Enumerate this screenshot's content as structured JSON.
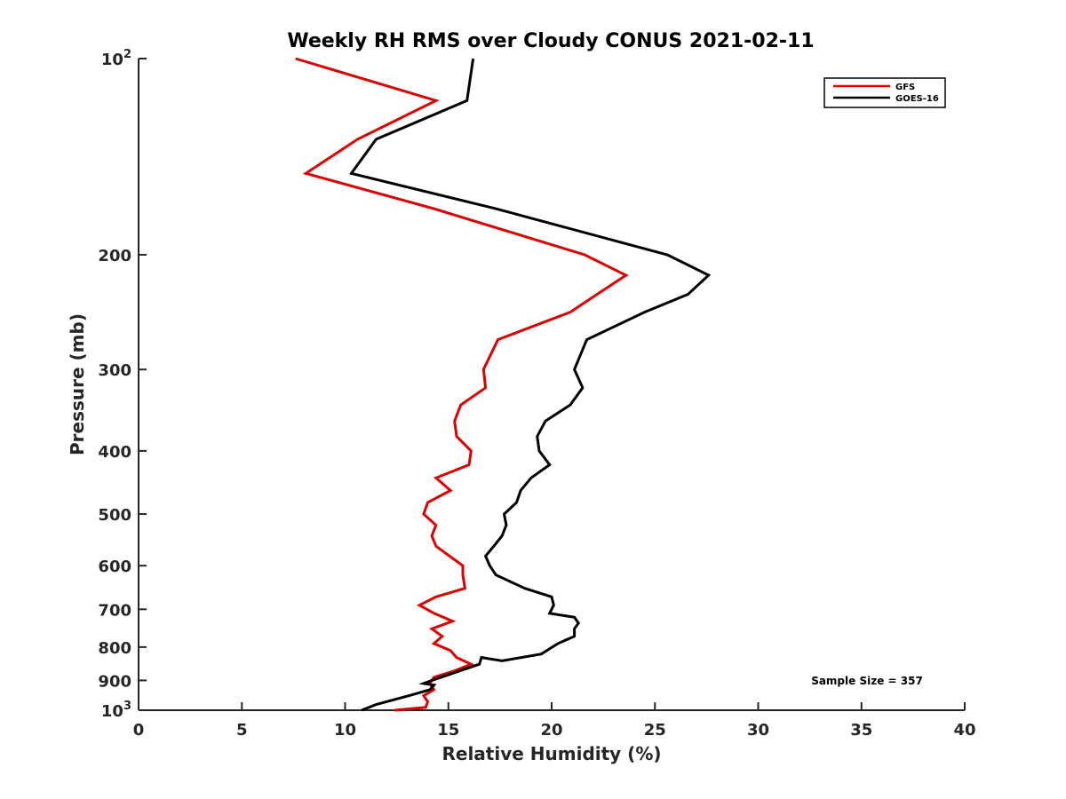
{
  "chart_data": {
    "type": "line",
    "title": "Weekly RH RMS over Cloudy CONUS 2021-02-11",
    "xlabel": "Relative Humidity (%)",
    "ylabel": "Pressure (mb)",
    "xlim": [
      0,
      40
    ],
    "ylim": [
      100,
      1000
    ],
    "yscale": "log",
    "y_reversed": true,
    "grid": false,
    "legend_position": "top-right",
    "x_ticks": [
      "0",
      "5",
      "10",
      "15",
      "20",
      "25",
      "30",
      "35",
      "40"
    ],
    "y_ticks": [
      {
        "value": 100,
        "base": "10",
        "exp": "2"
      },
      {
        "value": 200,
        "label": "200"
      },
      {
        "value": 300,
        "label": "300"
      },
      {
        "value": 400,
        "label": "400"
      },
      {
        "value": 500,
        "label": "500"
      },
      {
        "value": 600,
        "label": "600"
      },
      {
        "value": 700,
        "label": "700"
      },
      {
        "value": 800,
        "label": "800"
      },
      {
        "value": 900,
        "label": "900"
      },
      {
        "value": 1000,
        "base": "10",
        "exp": "3"
      }
    ],
    "series": [
      {
        "name": "GFS",
        "color": "#dd0000",
        "x": [
          7.6,
          14.4,
          10.6,
          8.1,
          14.3,
          21.6,
          23.6,
          22.2,
          20.9,
          17.4,
          16.7,
          16.8,
          15.6,
          15.3,
          15.4,
          16.1,
          16.0,
          14.4,
          15.1,
          14.0,
          13.8,
          14.4,
          14.2,
          14.4,
          15.7,
          15.7,
          15.8,
          14.4,
          13.6,
          14.3,
          15.2,
          14.2,
          14.7,
          14.3,
          15.1,
          15.4,
          16.1,
          15.3,
          14.3,
          14.1,
          14.3,
          13.8,
          14.0,
          13.9,
          12.4
        ],
        "y": [
          100,
          116,
          133,
          150,
          170,
          200,
          215,
          230,
          245,
          270,
          300,
          320,
          340,
          360,
          380,
          400,
          420,
          440,
          460,
          480,
          500,
          520,
          540,
          560,
          600,
          620,
          650,
          670,
          690,
          710,
          730,
          750,
          770,
          790,
          810,
          830,
          850,
          870,
          890,
          910,
          930,
          950,
          970,
          990,
          1000
        ]
      },
      {
        "name": "GOES-16",
        "color": "#000000",
        "x": [
          16.2,
          15.9,
          11.5,
          10.3,
          17.3,
          25.6,
          27.6,
          26.6,
          24.5,
          21.7,
          21.1,
          21.5,
          20.9,
          19.7,
          19.3,
          19.4,
          19.9,
          19.0,
          18.5,
          18.3,
          17.7,
          17.8,
          17.6,
          17.2,
          16.8,
          17.0,
          17.3,
          18.7,
          20.0,
          20.1,
          19.9,
          21.1,
          21.3,
          21.1,
          21.1,
          20.3,
          19.5,
          17.6,
          16.6,
          16.5,
          14.2,
          13.8,
          14.3,
          14.1,
          13.1,
          11.5,
          10.8
        ],
        "y": [
          100,
          116,
          133,
          150,
          170,
          200,
          215,
          230,
          245,
          270,
          300,
          320,
          340,
          360,
          380,
          400,
          420,
          440,
          460,
          480,
          500,
          520,
          540,
          560,
          580,
          600,
          620,
          650,
          670,
          690,
          710,
          720,
          735,
          750,
          770,
          790,
          820,
          840,
          830,
          850,
          900,
          910,
          915,
          930,
          950,
          980,
          1000
        ]
      }
    ],
    "annotations": [
      "Sample Size = 357"
    ]
  }
}
